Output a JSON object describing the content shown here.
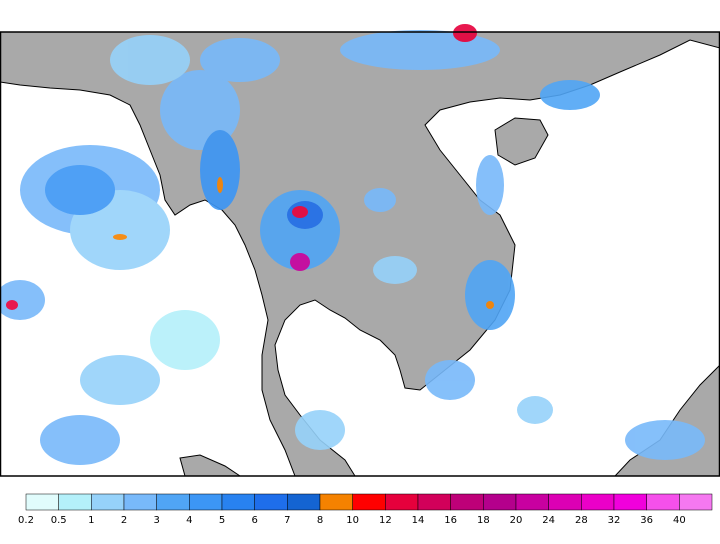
{
  "legend": {
    "ticks": [
      0.2,
      0.5,
      1,
      2,
      3,
      4,
      5,
      6,
      7,
      8,
      10,
      12,
      14,
      16,
      18,
      20,
      24,
      28,
      32,
      36,
      40
    ],
    "colors": [
      "#e1fcfc",
      "#b4f0fa",
      "#96d2fa",
      "#78b9fa",
      "#50a5f5",
      "#3c96f5",
      "#2882f0",
      "#1e6eeb",
      "#1464d2",
      "#f58200",
      "#ff0000",
      "#e6003c",
      "#d2005a",
      "#be0078",
      "#b4008c",
      "#c800a0",
      "#dc00b4",
      "#eb00c8",
      "#f000dc",
      "#f550eb",
      "#f578f0"
    ]
  }
}
